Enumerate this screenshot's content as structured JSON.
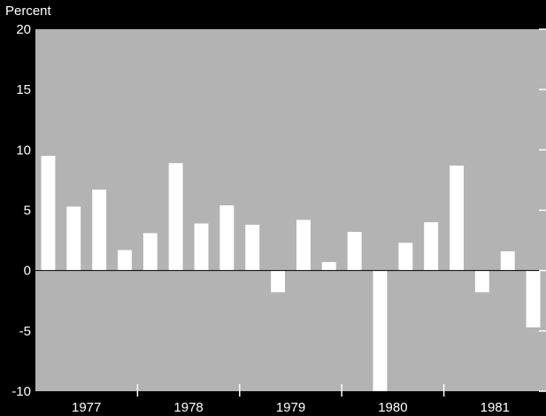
{
  "chart_data": {
    "type": "bar",
    "title": "",
    "ylabel": "Percent",
    "xlabel": "",
    "ylim": [
      -10,
      20
    ],
    "yticks": [
      "20",
      "15",
      "10",
      "5",
      "0",
      "-5",
      "-10"
    ],
    "ytick_values": [
      20,
      15,
      10,
      5,
      0,
      -5,
      -10
    ],
    "year_labels": [
      "1977",
      "1978",
      "1979",
      "1980",
      "1981"
    ],
    "quarters_per_year": 4,
    "grid": false,
    "colors": {
      "background": "#000000",
      "plot_area": "#b3b3b3",
      "bars": "#ffffff",
      "text": "#ffffff"
    },
    "series": [
      {
        "values": [
          9.5,
          5.3,
          6.7,
          1.7,
          3.1,
          8.9,
          3.9,
          5.4,
          3.8,
          -1.8,
          4.2,
          0.7,
          3.2,
          -10.0,
          2.3,
          4.0,
          8.7,
          -1.8,
          1.6,
          -4.7
        ]
      }
    ]
  }
}
